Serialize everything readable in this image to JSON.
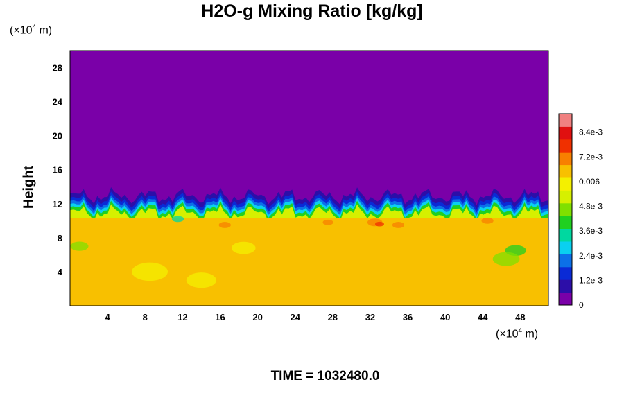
{
  "chart_data": {
    "type": "heatmap",
    "title": "H2O-g Mixing Ratio [kg/kg]",
    "ylabel": "Height",
    "x_unit_prefix": "(×10",
    "x_unit_exp": "4",
    "x_unit_suffix": " m)",
    "y_unit_prefix": "(×10",
    "y_unit_exp": "4",
    "y_unit_suffix": " m)",
    "xlim": [
      0,
      51
    ],
    "ylim": [
      0,
      30
    ],
    "x_ticks": [
      4,
      8,
      12,
      16,
      20,
      24,
      28,
      32,
      36,
      40,
      44,
      48
    ],
    "y_ticks": [
      4,
      8,
      12,
      16,
      20,
      24,
      28
    ],
    "colorbar": {
      "range": [
        0,
        0.0093
      ],
      "tick_values": [
        0,
        0.0012,
        0.0024,
        0.0036,
        0.0048,
        0.006,
        0.0072,
        0.0084
      ],
      "tick_labels": [
        "0",
        "1.2e-3",
        "2.4e-3",
        "3.6e-3",
        "4.8e-3",
        "0.006",
        "7.2e-3",
        "8.4e-3"
      ],
      "colors": [
        "#7a00a8",
        "#2c0ea8",
        "#0a2ad6",
        "#0c70e8",
        "#0ad0f0",
        "#00d8a0",
        "#20d020",
        "#80e000",
        "#d6f000",
        "#f4f000",
        "#f8c000",
        "#f88000",
        "#f03000",
        "#e01010",
        "#f08080"
      ]
    },
    "field_description_levels": {
      "upper_layer_value": 0,
      "lower_layer_value": 0.0062,
      "interface_height_mean": 11.3
    },
    "footer_time": "TIME = 1032480.0"
  }
}
